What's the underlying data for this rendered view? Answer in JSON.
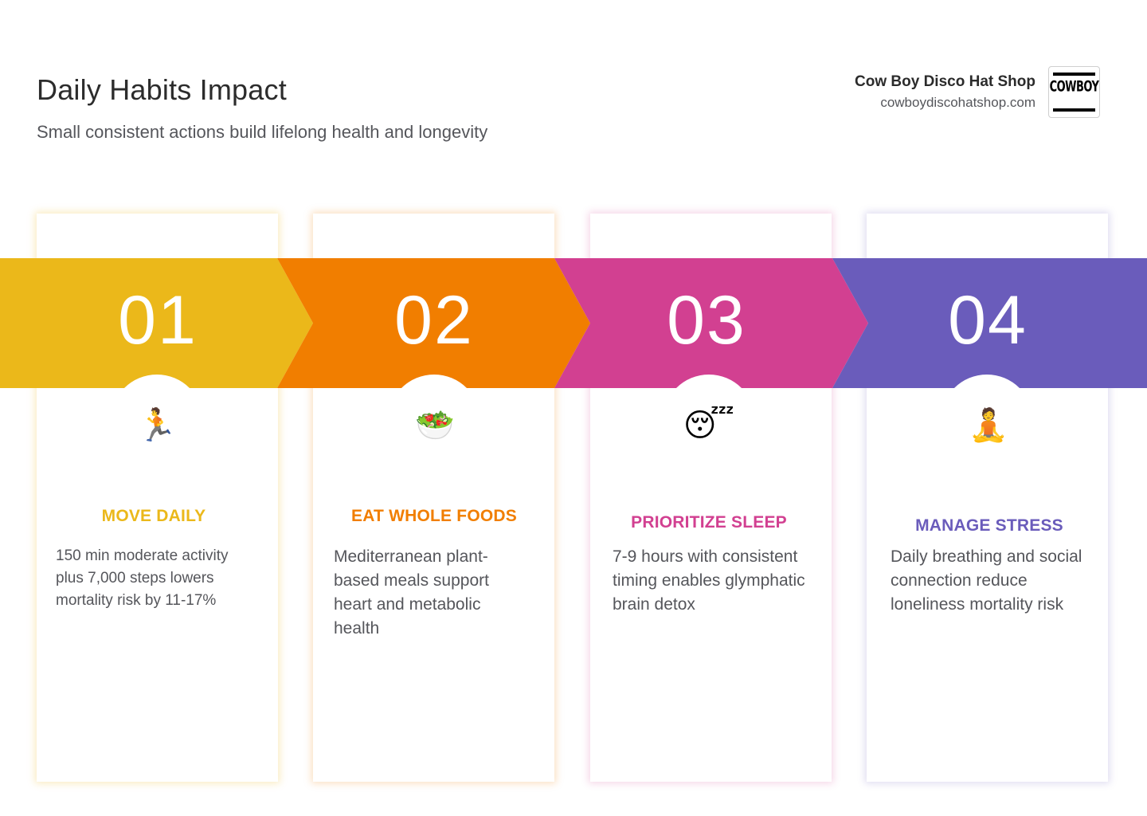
{
  "header": {
    "title": "Daily Habits Impact",
    "subtitle": "Small consistent actions build lifelong health and longevity"
  },
  "brand": {
    "name": "Cow Boy Disco Hat Shop",
    "url": "cowboydiscohatshop.com",
    "logo_text": "COWBOY"
  },
  "colors": {
    "step1": "#EBB81A",
    "step2": "#F17E00",
    "step3": "#D24091",
    "step4": "#6A5CBB",
    "text_dark": "#2C2C2C",
    "text_muted": "#55565B"
  },
  "steps": [
    {
      "number": "01",
      "icon": "person-running-icon",
      "glyph": "🏃",
      "title": "MOVE DAILY",
      "description": "150 min moderate activity plus 7,000 steps lowers mortality risk by 11-17%"
    },
    {
      "number": "02",
      "icon": "green-salad-icon",
      "glyph": "🥗",
      "title": "EAT WHOLE FOODS",
      "description": "Mediterranean plant-based meals support heart and metabolic health"
    },
    {
      "number": "03",
      "icon": "sleeping-face-icon",
      "glyph": "😴",
      "title": "PRIORITIZE SLEEP",
      "description": "7-9 hours with consistent timing enables glymphatic brain detox"
    },
    {
      "number": "04",
      "icon": "person-meditating-icon",
      "glyph": "🧘",
      "title": "MANAGE STRESS",
      "description": "Daily breathing and social connection reduce loneliness mortality risk"
    }
  ]
}
